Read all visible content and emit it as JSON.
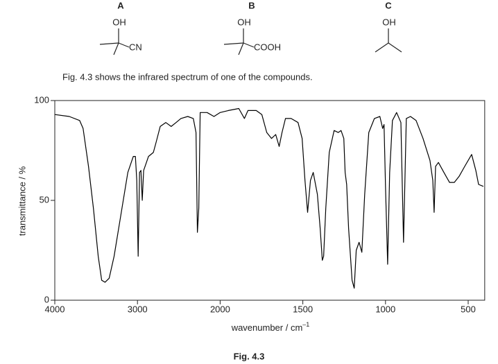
{
  "compounds": [
    {
      "letter": "A",
      "group1": "OH",
      "group2": "CN"
    },
    {
      "letter": "B",
      "group1": "OH",
      "group2": "COOH"
    },
    {
      "letter": "C",
      "group1": "OH"
    }
  ],
  "caption": "Fig. 4.3 shows the infrared spectrum of one of the compounds.",
  "chart_data": {
    "type": "line",
    "xlabel": "wavenumber / cm",
    "xlabel_sup": "–1",
    "ylabel": "transmittance / %",
    "figure_label": "Fig. 4.3",
    "xlim": [
      4000,
      400
    ],
    "ylim": [
      0,
      100
    ],
    "xticks": [
      4000,
      3000,
      2000,
      1500,
      1000,
      500
    ],
    "yticks": [
      0,
      50,
      100
    ],
    "color": "#000000",
    "x": [
      4000,
      3825,
      3700,
      3658,
      3592,
      3533,
      3475,
      3433,
      3392,
      3342,
      3283,
      3200,
      3117,
      3050,
      3025,
      3008,
      2992,
      2975,
      2958,
      2942,
      2925,
      2892,
      2867,
      2808,
      2775,
      2725,
      2658,
      2592,
      2533,
      2475,
      2392,
      2325,
      2292,
      2275,
      2258,
      2242,
      2158,
      2075,
      2000,
      1950,
      1887,
      1853,
      1832,
      1782,
      1748,
      1718,
      1689,
      1664,
      1643,
      1626,
      1605,
      1571,
      1529,
      1504,
      1487,
      1471,
      1454,
      1437,
      1412,
      1395,
      1382,
      1374,
      1361,
      1340,
      1311,
      1286,
      1269,
      1252,
      1244,
      1235,
      1223,
      1202,
      1189,
      1177,
      1160,
      1143,
      1126,
      1101,
      1067,
      1034,
      1017,
      1009,
      1000,
      987,
      975,
      958,
      933,
      907,
      891,
      874,
      849,
      815,
      773,
      731,
      714,
      706,
      697,
      680,
      647,
      613,
      584,
      555,
      521,
      479,
      454,
      437,
      408
    ],
    "values": [
      93,
      92,
      90,
      86,
      67,
      46,
      22,
      10,
      9,
      11,
      22,
      43,
      64,
      72,
      72,
      60,
      22,
      64,
      65,
      50,
      65,
      69,
      72,
      74,
      79,
      87,
      89,
      87,
      89,
      91,
      92,
      91,
      84,
      34,
      46,
      94,
      94,
      92,
      94,
      95,
      96,
      91,
      95,
      95,
      93,
      84,
      81,
      83,
      77,
      84,
      91,
      91,
      89,
      81,
      60,
      44,
      60,
      64,
      53,
      36,
      20,
      22,
      46,
      74,
      85,
      84,
      85,
      81,
      64,
      58,
      36,
      10,
      6,
      25,
      29,
      24,
      53,
      84,
      91,
      92,
      86,
      88,
      57,
      18,
      64,
      90,
      94,
      89,
      29,
      91,
      92,
      90,
      81,
      70,
      60,
      44,
      67,
      69,
      64,
      59,
      59,
      62,
      67,
      73,
      65,
      58,
      57
    ]
  }
}
